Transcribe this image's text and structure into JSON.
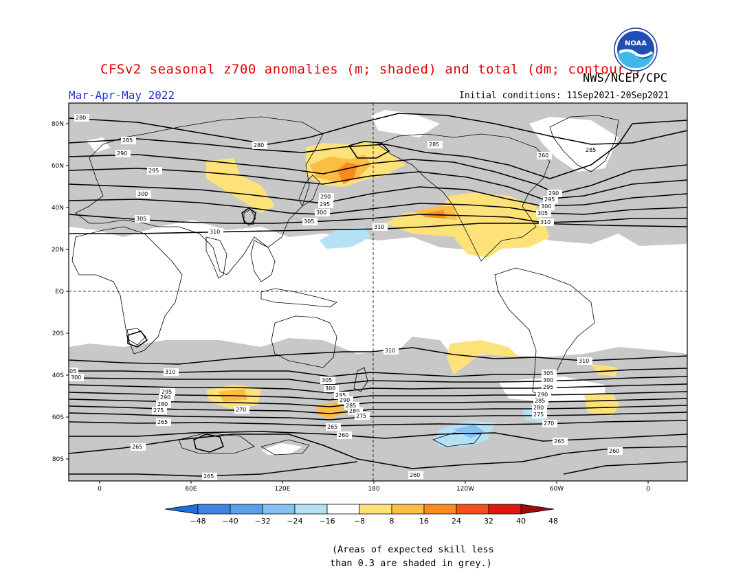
{
  "title": "CFSv2 seasonal z700 anomalies (m; shaded) and total (dm; contours)",
  "agency": "NWS/NCEP/CPC",
  "season": "Mar-Apr-May 2022",
  "initial_conditions": "Initial conditions: 11Sep2021-20Sep2021",
  "logo_text": "NOAA",
  "note_line1": "(Areas of expected skill less",
  "note_line2": "than 0.3 are shaded in grey.)",
  "latitude_labels": [
    "80N",
    "60N",
    "40N",
    "20N",
    "EQ",
    "20S",
    "40S",
    "60S",
    "80S"
  ],
  "longitude_labels": [
    "0",
    "60E",
    "120E",
    "180",
    "120W",
    "60W",
    "0"
  ],
  "colorbar": {
    "ticks": [
      "-48",
      "-40",
      "-32",
      "-24",
      "-16",
      "-8",
      "8",
      "16",
      "24",
      "32",
      "40",
      "48"
    ],
    "colors": [
      "#1e6fd9",
      "#3d85e0",
      "#5d9fe8",
      "#86bff0",
      "#b4e2f4",
      "#ffffff",
      "#fde27a",
      "#fcbd45",
      "#f98c1f",
      "#f4501b",
      "#dd1a12",
      "#a00a08"
    ]
  },
  "skill_mask_color": "#c8c8c8",
  "contour_labels": {
    "n1": "280",
    "n2": "285",
    "n3": "290",
    "n4": "295",
    "n5": "300",
    "n6": "305",
    "n7": "310",
    "n8": "280",
    "n9": "285",
    "n10": "260",
    "n11": "285",
    "n12": "290",
    "n13": "295",
    "n14": "300",
    "n15": "305",
    "n16": "310",
    "n17": "290",
    "n18": "295",
    "n19": "300",
    "n20": "305",
    "n21": "310",
    "s1": "310",
    "s2": "310",
    "s3": "310",
    "s4": "305",
    "s5": "300",
    "s6": "295",
    "s7": "290",
    "s8": "285",
    "s9": "280",
    "s10": "275",
    "s11": "270",
    "s12": "265",
    "s13": "260",
    "s14": "265",
    "s15": "265",
    "s16": "260",
    "s17": "305",
    "s18": "300",
    "s19": "295",
    "s20": "290",
    "s21": "285",
    "s22": "280",
    "s23": "275",
    "s24": "270",
    "s25": "265",
    "s26": "260",
    "s27": "305",
    "s28": "300",
    "s29": "295",
    "s30": "290",
    "s31": "280",
    "s32": "275",
    "s33": "285",
    "s34": "265",
    "s35": "310",
    "s36": "05"
  }
}
